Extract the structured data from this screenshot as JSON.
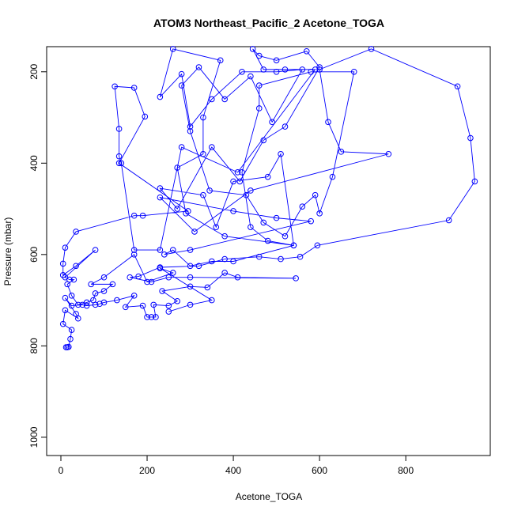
{
  "chart_data": {
    "type": "line",
    "title": "ATOM3 Northeast_Pacific_2 Acetone_TOGA",
    "xlabel": "Acetone_TOGA",
    "ylabel": "Pressure (mbar)",
    "color": "#0000ff",
    "xlim": [
      -33,
      996
    ],
    "ylim": [
      1040,
      145
    ],
    "xticks": [
      0,
      200,
      400,
      600,
      800
    ],
    "yticks": [
      200,
      400,
      600,
      800,
      1000
    ],
    "x": [
      12,
      15,
      18,
      22,
      25,
      5,
      10,
      40,
      35,
      10,
      25,
      50,
      60,
      80,
      90,
      100,
      130,
      170,
      150,
      190,
      200,
      210,
      220,
      215,
      250,
      270,
      235,
      300,
      340,
      380,
      410,
      545,
      300,
      250,
      210,
      160,
      180,
      230,
      320,
      380,
      460,
      510,
      555,
      595,
      900,
      960,
      950,
      920,
      720,
      600,
      620,
      650,
      760,
      440,
      310,
      230,
      400,
      500,
      580,
      300,
      240,
      260,
      300,
      350,
      400,
      540,
      380,
      290,
      270,
      330,
      330,
      370,
      260,
      230,
      280,
      300,
      350,
      420,
      500,
      560,
      490,
      440,
      380,
      320,
      280,
      300,
      345,
      430,
      470,
      520,
      560,
      590,
      600,
      630,
      680,
      580,
      460,
      460,
      420,
      440,
      480,
      540,
      510,
      480,
      400,
      360,
      330,
      230,
      270,
      350,
      415,
      470,
      520,
      600,
      570,
      500,
      460,
      445,
      470,
      520,
      590,
      410,
      280,
      230,
      170,
      140,
      135,
      135,
      125,
      170,
      195,
      135,
      295,
      190,
      170,
      35,
      10,
      5,
      5,
      35,
      80,
      10,
      20,
      30,
      15,
      25,
      40,
      60,
      75,
      80,
      100,
      120,
      70,
      100,
      170,
      200,
      260,
      230,
      350,
      300,
      250
    ],
    "y": [
      803,
      803,
      802,
      785,
      765,
      752,
      722,
      740,
      730,
      695,
      712,
      710,
      712,
      710,
      708,
      705,
      700,
      690,
      715,
      712,
      737,
      737,
      737,
      710,
      712,
      702,
      680,
      670,
      672,
      640,
      650,
      652,
      650,
      650,
      660,
      650,
      648,
      628,
      625,
      610,
      605,
      610,
      605,
      580,
      525,
      440,
      345,
      232,
      150,
      195,
      310,
      375,
      380,
      460,
      550,
      475,
      505,
      520,
      527,
      590,
      600,
      590,
      625,
      615,
      615,
      580,
      560,
      510,
      410,
      380,
      300,
      175,
      150,
      255,
      205,
      320,
      260,
      200,
      200,
      195,
      310,
      210,
      260,
      190,
      230,
      330,
      460,
      470,
      530,
      560,
      495,
      470,
      510,
      430,
      200,
      200,
      230,
      280,
      420,
      540,
      570,
      580,
      380,
      430,
      440,
      540,
      470,
      455,
      500,
      365,
      440,
      350,
      320,
      190,
      155,
      175,
      165,
      150,
      195,
      195,
      195,
      420,
      365,
      590,
      590,
      400,
      385,
      325,
      232,
      235,
      298,
      400,
      505,
      515,
      515,
      550,
      585,
      620,
      645,
      625,
      590,
      650,
      655,
      655,
      665,
      690,
      710,
      705,
      700,
      685,
      680,
      665,
      665,
      650,
      600,
      660,
      640,
      630,
      700,
      710,
      725
    ]
  }
}
